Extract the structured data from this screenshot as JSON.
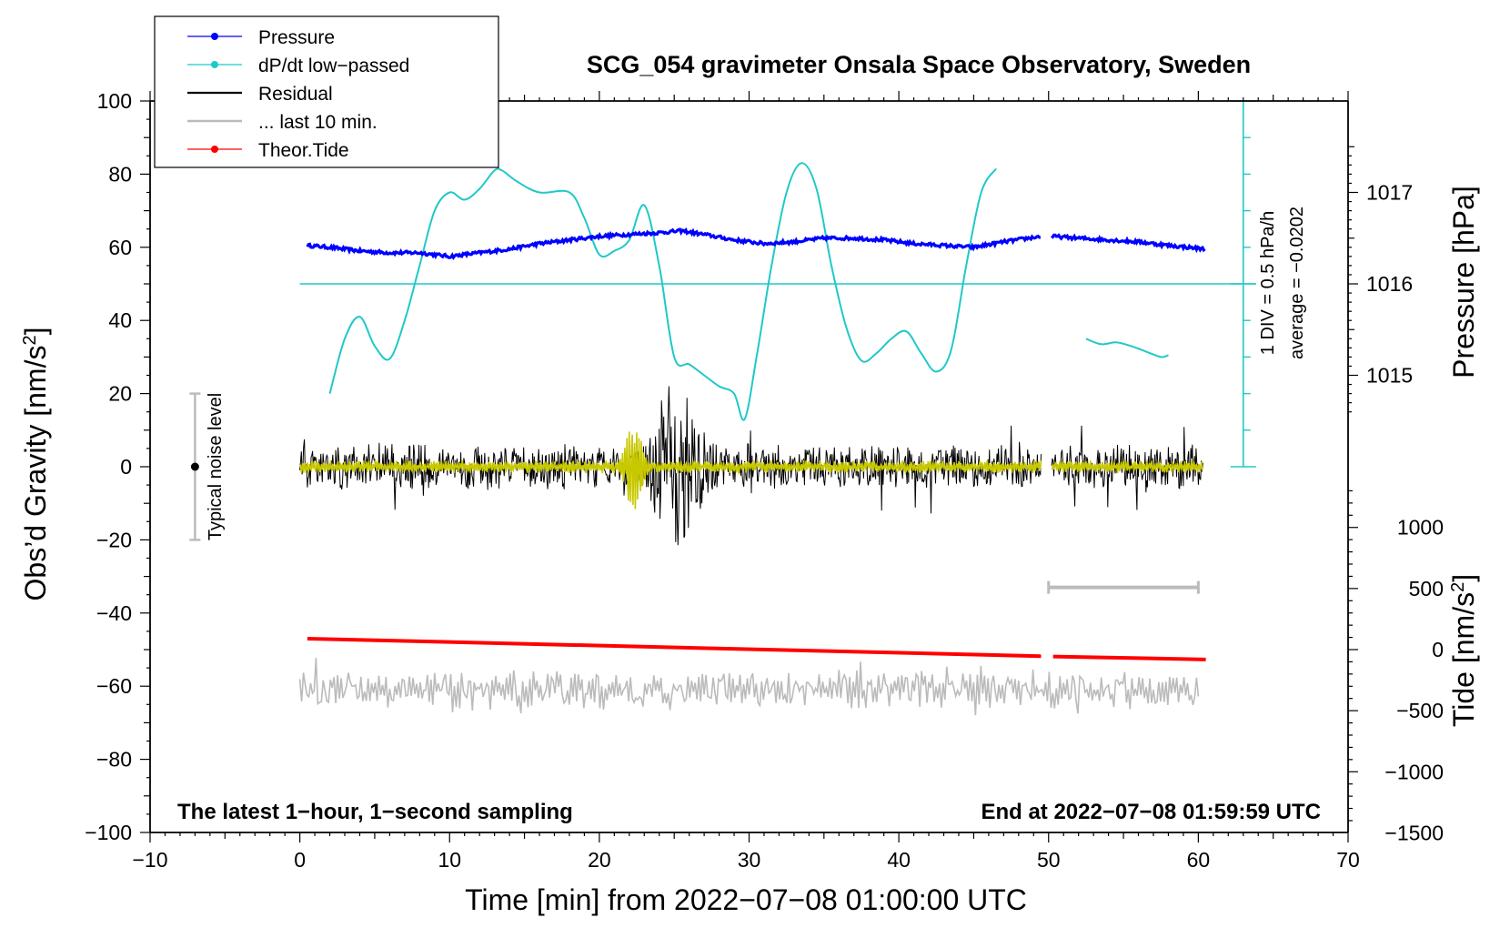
{
  "chart_data": {
    "type": "line",
    "title": "SCG_054 gravimeter Onsala Space Observatory, Sweden",
    "xlabel": "Time [min] from 2022−07−08 01:00:00 UTC",
    "ylabel": "Obs’d Gravity [nm/s",
    "ylabel_sup": "2",
    "ylabel_close": "]",
    "ylabel_right_pressure": "Pressure [hPa]",
    "ylabel_right_tide": "Tide [nm/s",
    "ylabel_right_tide_sup": "2",
    "ylabel_right_tide_close": "]",
    "xlim": [
      -10,
      70
    ],
    "ylim": [
      -100,
      100
    ],
    "x_ticks": [
      {
        "value": -10,
        "label": "−10"
      },
      {
        "value": 0,
        "label": "0"
      },
      {
        "value": 10,
        "label": "10"
      },
      {
        "value": 20,
        "label": "20"
      },
      {
        "value": 30,
        "label": "30"
      },
      {
        "value": 40,
        "label": "40"
      },
      {
        "value": 50,
        "label": "50"
      },
      {
        "value": 60,
        "label": "60"
      },
      {
        "value": 70,
        "label": "70"
      }
    ],
    "y_ticks": [
      {
        "value": 100,
        "label": "100"
      },
      {
        "value": 80,
        "label": "80"
      },
      {
        "value": 60,
        "label": "60"
      },
      {
        "value": 40,
        "label": "40"
      },
      {
        "value": 20,
        "label": "20"
      },
      {
        "value": 0,
        "label": "0"
      },
      {
        "value": -20,
        "label": "−20"
      },
      {
        "value": -40,
        "label": "−40"
      },
      {
        "value": -60,
        "label": "−60"
      },
      {
        "value": -80,
        "label": "−80"
      },
      {
        "value": -100,
        "label": "−100"
      }
    ],
    "pressure_axis": {
      "ref_gravity_y": 50,
      "ref_hpa": 1016,
      "units_per_hpa": 25,
      "ticks": [
        {
          "value": 1017,
          "label": "1017"
        },
        {
          "value": 1016,
          "label": "1016"
        },
        {
          "value": 1015,
          "label": "1015"
        }
      ]
    },
    "tide_axis": {
      "ref_gravity_y": -50,
      "ref_tide": 0,
      "units_per_500": 16.7,
      "ticks": [
        {
          "value": 1000,
          "label": "1000"
        },
        {
          "value": 500,
          "label": "500"
        },
        {
          "value": 0,
          "label": "0"
        },
        {
          "value": -500,
          "label": "−500"
        },
        {
          "value": -1000,
          "label": "−1000"
        },
        {
          "value": -1500,
          "label": "−1500"
        }
      ]
    },
    "dpdt_scale": {
      "x": 63,
      "y_bottom": 0,
      "y_top": 100,
      "minor_step": 10,
      "major_step": 50,
      "label_div": "1 DIV = 0.5 hPa/h",
      "label_avg": "average = −0.0202",
      "avg_line_y": 50
    },
    "series": [
      {
        "name": "Pressure",
        "color": "#0000ff",
        "style": "line-dot",
        "x": [
          0.5,
          2,
          4,
          6,
          8,
          10,
          12,
          14,
          16,
          18,
          20,
          22,
          24,
          25.5,
          27,
          29,
          31,
          33,
          35,
          37,
          39,
          41,
          43,
          45,
          47,
          49.5
        ],
        "y": [
          60.5,
          60,
          59,
          58.5,
          58.5,
          57.5,
          58.5,
          59.5,
          61,
          62,
          63,
          63.5,
          64,
          64.5,
          63.5,
          62,
          61,
          61.5,
          62.5,
          62.5,
          62,
          61,
          60.5,
          60,
          61.5,
          63
        ],
        "x2": [
          50.2,
          52,
          54,
          56,
          58,
          60.5
        ],
        "y2": [
          63,
          62.5,
          62,
          61.5,
          60.5,
          59.5
        ]
      },
      {
        "name": "dP/dt low−passed",
        "color": "#20c8c8",
        "style": "line-dot",
        "x": [
          2,
          3,
          4,
          5,
          6,
          7,
          8,
          9,
          10,
          11,
          12,
          13,
          13.5,
          14.5,
          16,
          18,
          19,
          20,
          21,
          22,
          23,
          24,
          25,
          26,
          27,
          28,
          29,
          29.7,
          30.5,
          31.5,
          32.5,
          33.5,
          34.5,
          35.5,
          36.5,
          37.5,
          38.5,
          39.5,
          40.5,
          41.5,
          42.5,
          43.5,
          44.5,
          45.5,
          46.5
        ],
        "y": [
          20,
          35,
          41,
          33,
          29.5,
          40,
          55,
          70,
          75,
          73,
          76,
          81,
          81,
          78,
          75,
          75,
          68,
          58,
          59,
          62,
          71.5,
          55,
          30,
          28,
          25,
          22,
          20,
          13,
          30,
          55,
          75,
          83,
          76,
          55,
          38,
          29,
          31,
          35,
          37,
          31,
          26,
          32,
          55,
          75,
          81.5
        ],
        "x2": [
          52.5,
          53.5,
          54.5,
          55.5,
          56.5,
          57.5,
          58
        ],
        "y2": [
          35,
          33.5,
          34,
          33,
          31.5,
          30,
          30.5
        ]
      },
      {
        "name": "Residual",
        "color": "#000000",
        "style": "line",
        "segments": [
          [
            0,
            49.5
          ],
          [
            50.2,
            60.3
          ]
        ],
        "noise_amp": 4.5,
        "event": {
          "start": 21,
          "end": 31,
          "peak_x": 25.3,
          "peak_amp": 26
        }
      },
      {
        "name": "Residual (filtered)",
        "color": "#c8c800",
        "style": "line",
        "event": {
          "start": 21,
          "end": 23.5,
          "peak_x": 22.3,
          "peak_amp": 12
        }
      },
      {
        "name": "... last 10 min.",
        "color": "#bbbbbb",
        "style": "line",
        "x_range": [
          0,
          60
        ],
        "offset_y": -61,
        "amp": 4,
        "marker_span_x": [
          50,
          60
        ],
        "marker_y": -33
      },
      {
        "name": "Theor.Tide",
        "color": "#ff0000",
        "style": "line-dot",
        "x": [
          0.5,
          49.5
        ],
        "y": [
          -47,
          -51.8
        ],
        "x2": [
          50.3,
          60.5
        ],
        "y2": [
          -51.9,
          -52.7
        ]
      }
    ],
    "noise_bar": {
      "x": -7,
      "y_low": -20,
      "y_high": 20,
      "label": "Typical noise level"
    },
    "annotations": {
      "bottom_left": "The latest 1−hour, 1−second sampling",
      "bottom_right": "End at 2022−07−08 01:59:59 UTC"
    },
    "legend": {
      "placement": "top-left",
      "entries": [
        {
          "label": "Pressure",
          "color": "#0000ff",
          "marker": true
        },
        {
          "label": "dP/dt low−passed",
          "color": "#20c8c8",
          "marker": true
        },
        {
          "label": "Residual",
          "color": "#000000",
          "marker": false
        },
        {
          "label": "... last 10 min.",
          "color": "#bbbbbb",
          "marker": false
        },
        {
          "label": "Theor.Tide",
          "color": "#ff0000",
          "marker": true
        }
      ]
    }
  }
}
